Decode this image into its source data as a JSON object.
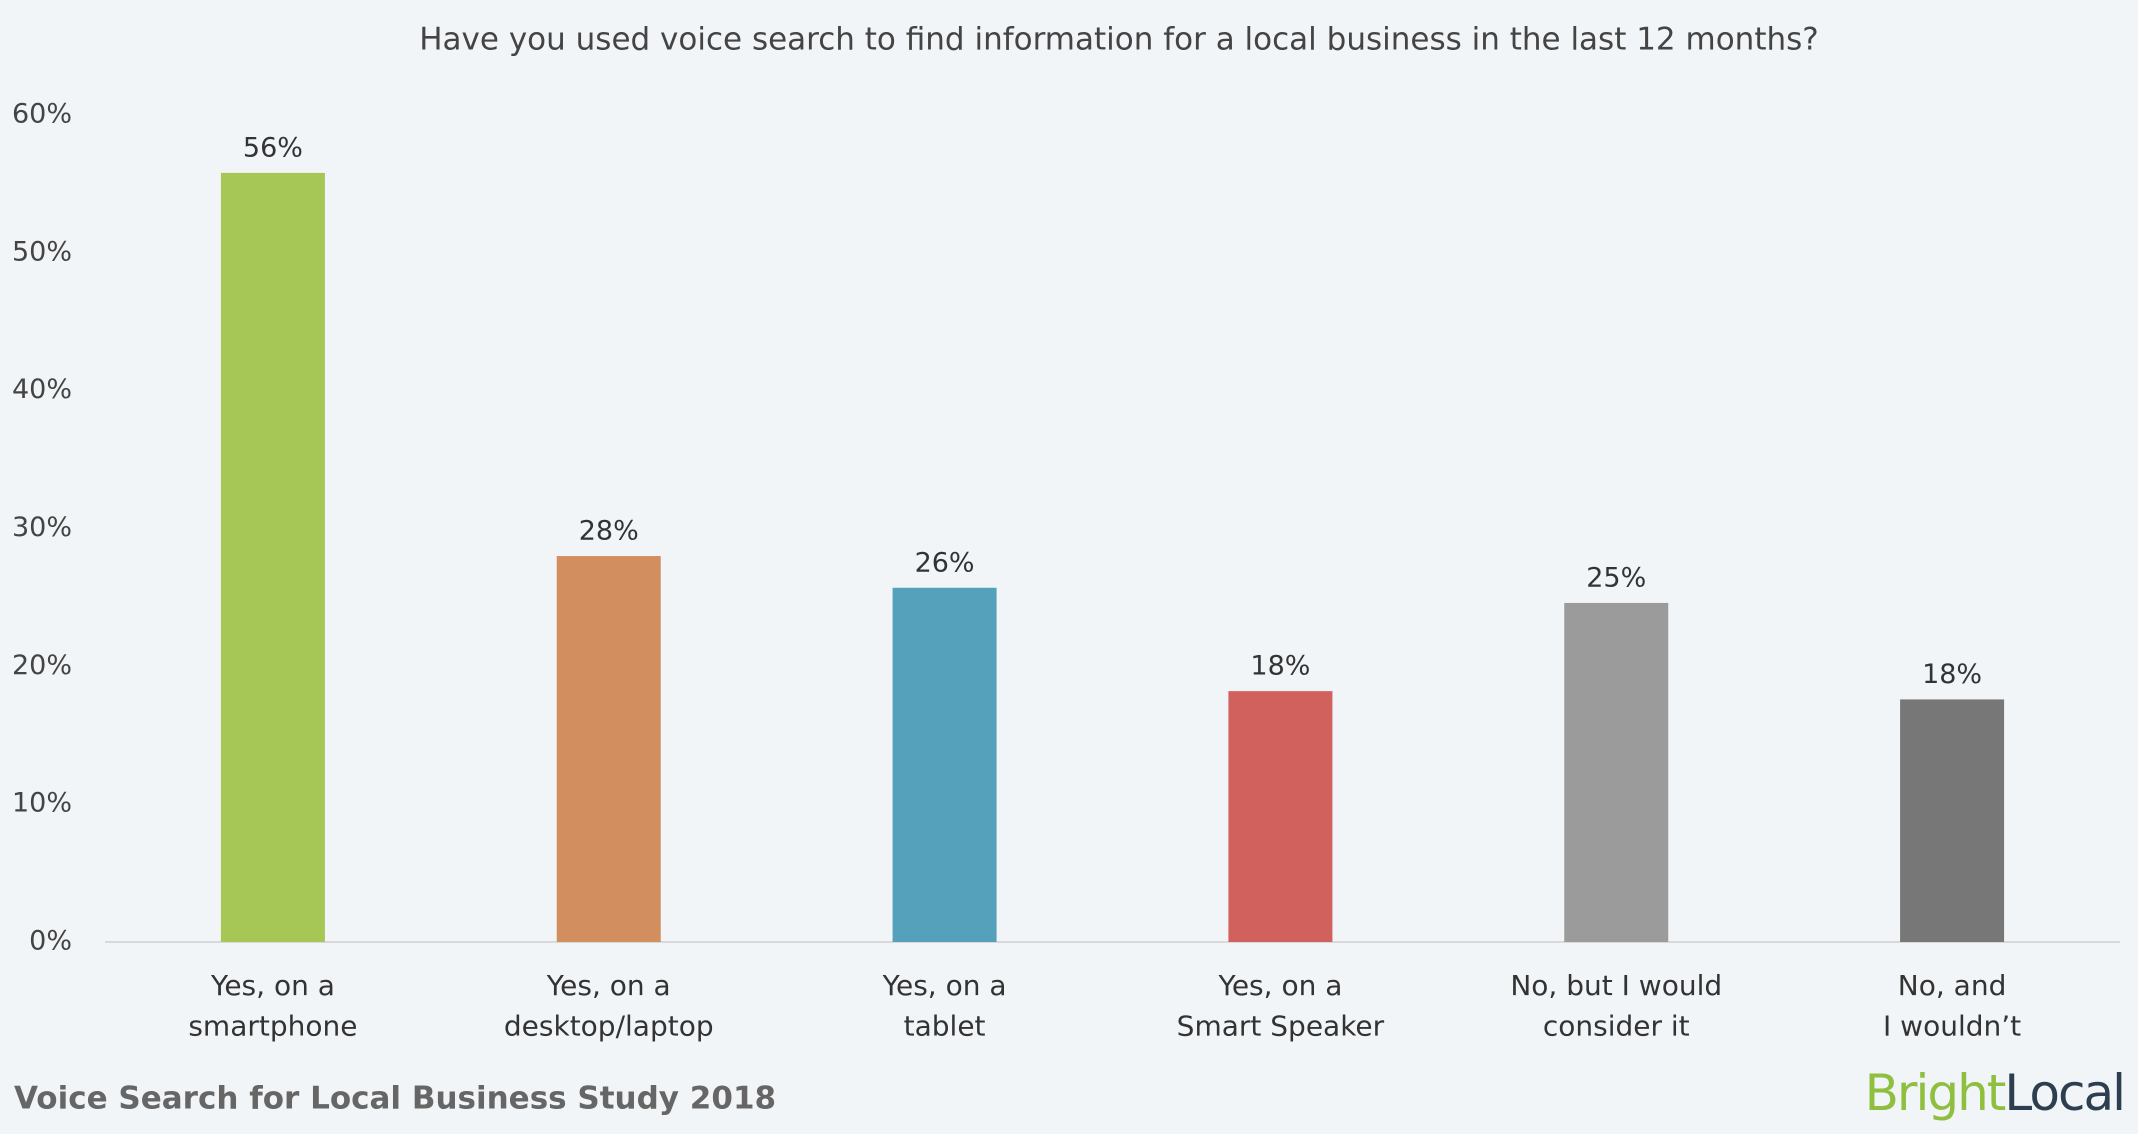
{
  "chart_data": {
    "type": "bar",
    "title": "Have you used voice search to find information for a local business in the last 12 months?",
    "categories": [
      "Yes, on a\nsmartphone",
      "Yes, on a\ndesktop/laptop",
      "Yes, on a\ntablet",
      "Yes, on a\nSmart Speaker",
      "No, but I would\nconsider it",
      "No, and\nI wouldn’t"
    ],
    "values": [
      55.8,
      28.0,
      25.7,
      18.2,
      24.6,
      17.6
    ],
    "value_labels": [
      "56%",
      "28%",
      "26%",
      "18%",
      "25%",
      "18%"
    ],
    "colors": [
      "#a6c655",
      "#d28e5e",
      "#55a0bb",
      "#d1615d",
      "#9b9b9b",
      "#777777"
    ],
    "ylim": [
      0,
      60
    ],
    "yticks": [
      {
        "value": 0,
        "label": "0%"
      },
      {
        "value": 10,
        "label": "10%"
      },
      {
        "value": 20,
        "label": "20%"
      },
      {
        "value": 30,
        "label": "30%"
      },
      {
        "value": 40,
        "label": "40%"
      },
      {
        "value": 50,
        "label": "50%"
      },
      {
        "value": 60,
        "label": "60%"
      }
    ],
    "grid": false,
    "footer": "Voice Search for Local Business Study 2018",
    "brand": {
      "first": "Bright",
      "second": "Local"
    }
  }
}
